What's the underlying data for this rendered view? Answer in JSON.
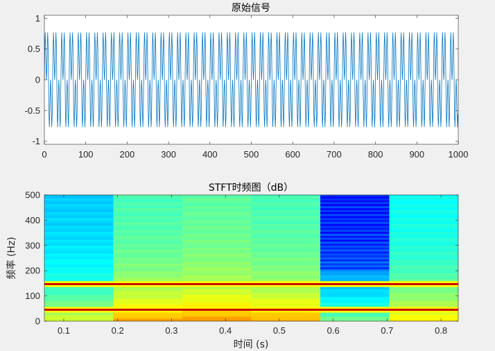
{
  "chart_data": [
    {
      "type": "line",
      "title": "原始信号",
      "xlabel": "",
      "ylabel": "",
      "xlim": [
        0,
        1000
      ],
      "ylim": [
        -1.05,
        1.05
      ],
      "xticks": [
        0,
        100,
        200,
        300,
        400,
        500,
        600,
        700,
        800,
        900,
        1000
      ],
      "xtick_labels": [
        "0",
        "100",
        "200",
        "300",
        "400",
        "500",
        "600",
        "700",
        "800",
        "900",
        "1000"
      ],
      "yticks": [
        1,
        0.5,
        0,
        -0.5,
        -1
      ],
      "ytick_labels": [
        "1",
        "0.5",
        "0",
        "-0.5",
        "-1"
      ],
      "series": [
        {
          "color": "#0072bd",
          "sample_rate_hz": 1000,
          "n_samples": 1000,
          "components": [
            {
              "freq_hz": 50,
              "amplitude": 0.5
            },
            {
              "freq_hz": 150,
              "amplitude": 0.5
            }
          ]
        }
      ],
      "grid": false
    },
    {
      "type": "heatmap",
      "title": "STFT时频图（dB）",
      "xlabel": "时间 (s)",
      "ylabel": "频率 (Hz)",
      "xlim": [
        0.064,
        0.832
      ],
      "ylim": [
        0,
        500
      ],
      "xticks": [
        0.1,
        0.2,
        0.3,
        0.4,
        0.5,
        0.6,
        0.7,
        0.8
      ],
      "xtick_labels": [
        "0.1",
        "0.2",
        "0.3",
        "0.4",
        "0.5",
        "0.6",
        "0.7",
        "0.8"
      ],
      "yticks": [
        0,
        100,
        200,
        300,
        400,
        500
      ],
      "ytick_labels": [
        "0",
        "100",
        "200",
        "300",
        "400",
        "500"
      ],
      "colormap": "jet",
      "time_frames": [
        {
          "t_start": 0.064,
          "t_end": 0.192,
          "noise_level": 0.32
        },
        {
          "t_start": 0.192,
          "t_end": 0.32,
          "noise_level": 0.44
        },
        {
          "t_start": 0.32,
          "t_end": 0.448,
          "noise_level": 0.46
        },
        {
          "t_start": 0.448,
          "t_end": 0.576,
          "noise_level": 0.44
        },
        {
          "t_start": 0.576,
          "t_end": 0.704,
          "noise_level": 0.22
        },
        {
          "t_start": 0.704,
          "t_end": 0.832,
          "noise_level": 0.38
        }
      ],
      "peak_frequencies_hz": [
        50,
        150
      ],
      "grid": false
    }
  ]
}
